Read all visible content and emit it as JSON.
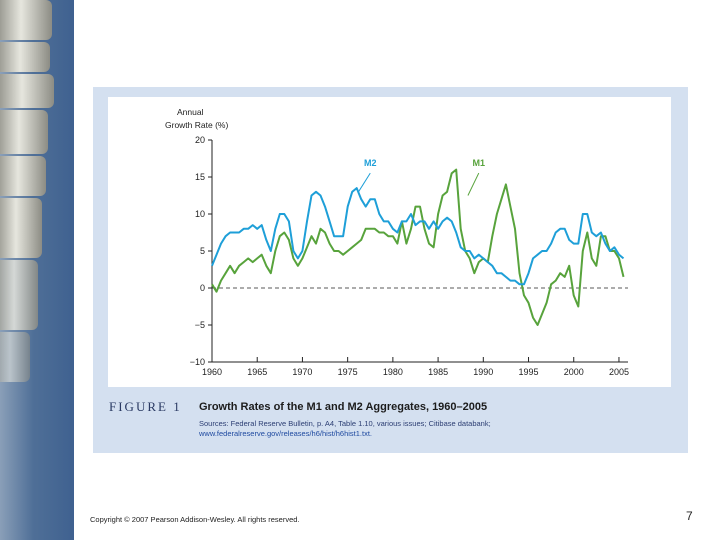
{
  "chart_data": {
    "type": "line",
    "title": "Growth Rates of the M1 and M2 Aggregates, 1960–2005",
    "figure_label": "FIGURE 1",
    "ylabel_line1": "Annual",
    "ylabel_line2": "Growth Rate (%)",
    "xlabel": "",
    "xlim": [
      1960,
      2006
    ],
    "ylim": [
      -10,
      20
    ],
    "xticks": [
      1960,
      1965,
      1970,
      1975,
      1980,
      1985,
      1990,
      1995,
      2000,
      2005
    ],
    "yticks": [
      20,
      15,
      10,
      5,
      0,
      -5,
      -10
    ],
    "ytick_labels": [
      "20",
      "15",
      "10",
      "5",
      "0",
      "−5",
      "−10"
    ],
    "zero_line": "dashed",
    "series": [
      {
        "name": "M1",
        "color": "#58a33c",
        "x": [
          1960,
          1960.5,
          1961,
          1961.5,
          1962,
          1962.5,
          1963,
          1963.5,
          1964,
          1964.5,
          1965,
          1965.5,
          1966,
          1966.5,
          1967,
          1967.5,
          1968,
          1968.5,
          1969,
          1969.5,
          1970,
          1970.5,
          1971,
          1971.5,
          1972,
          1972.5,
          1973,
          1973.5,
          1974,
          1974.5,
          1975,
          1975.5,
          1976,
          1976.5,
          1977,
          1977.5,
          1978,
          1978.5,
          1979,
          1979.5,
          1980,
          1980.5,
          1981,
          1981.5,
          1982,
          1982.5,
          1983,
          1983.5,
          1984,
          1984.5,
          1985,
          1985.5,
          1986,
          1986.5,
          1987,
          1987.5,
          1988,
          1988.5,
          1989,
          1989.5,
          1990,
          1990.5,
          1991,
          1991.5,
          1992,
          1992.5,
          1993,
          1993.5,
          1994,
          1994.5,
          1995,
          1995.5,
          1996,
          1996.5,
          1997,
          1997.5,
          1998,
          1998.5,
          1999,
          1999.5,
          2000,
          2000.5,
          2001,
          2001.5,
          2002,
          2002.5,
          2003,
          2003.5,
          2004,
          2004.5,
          2005,
          2005.5
        ],
        "values": [
          0.5,
          -0.5,
          1,
          2,
          3,
          2,
          3,
          3.5,
          4,
          3.5,
          4,
          4.5,
          3,
          2,
          5,
          7,
          7.5,
          6.5,
          4,
          3,
          4,
          5.5,
          7,
          6,
          8,
          7.5,
          6,
          5,
          5,
          4.5,
          5,
          5.5,
          6,
          6.5,
          8,
          8,
          8,
          7.5,
          7.5,
          7,
          7,
          6,
          9,
          6,
          8,
          11,
          11,
          8,
          6,
          5.5,
          10,
          12.5,
          13,
          15.5,
          16,
          8,
          5,
          4,
          2,
          3.5,
          4,
          3.5,
          7,
          10,
          12,
          14,
          11,
          8,
          2,
          -1,
          -2,
          -4,
          -5,
          -3.5,
          -2,
          0.5,
          1,
          2,
          1.5,
          3,
          -1,
          -2.5,
          5,
          7.5,
          4,
          3,
          7,
          7,
          5,
          5,
          4,
          1.5
        ]
      },
      {
        "name": "M2",
        "color": "#1e9fd8",
        "x": [
          1960,
          1960.5,
          1961,
          1961.5,
          1962,
          1962.5,
          1963,
          1963.5,
          1964,
          1964.5,
          1965,
          1965.5,
          1966,
          1966.5,
          1967,
          1967.5,
          1968,
          1968.5,
          1969,
          1969.5,
          1970,
          1970.5,
          1971,
          1971.5,
          1972,
          1972.5,
          1973,
          1973.5,
          1974,
          1974.5,
          1975,
          1975.5,
          1976,
          1976.5,
          1977,
          1977.5,
          1978,
          1978.5,
          1979,
          1979.5,
          1980,
          1980.5,
          1981,
          1981.5,
          1982,
          1982.5,
          1983,
          1983.5,
          1984,
          1984.5,
          1985,
          1985.5,
          1986,
          1986.5,
          1987,
          1987.5,
          1988,
          1988.5,
          1989,
          1989.5,
          1990,
          1990.5,
          1991,
          1991.5,
          1992,
          1992.5,
          1993,
          1993.5,
          1994,
          1994.5,
          1995,
          1995.5,
          1996,
          1996.5,
          1997,
          1997.5,
          1998,
          1998.5,
          1999,
          1999.5,
          2000,
          2000.5,
          2001,
          2001.5,
          2002,
          2002.5,
          2003,
          2003.5,
          2004,
          2004.5,
          2005,
          2005.5
        ],
        "values": [
          3,
          4.5,
          6,
          7,
          7.5,
          7.5,
          7.5,
          8,
          8,
          8.5,
          8,
          8.5,
          6.5,
          5,
          8,
          10,
          10,
          9,
          5,
          4,
          5,
          9,
          12.5,
          13,
          12.5,
          11,
          9,
          7,
          7,
          7,
          11,
          13,
          13.5,
          12,
          11,
          12,
          12,
          10,
          9,
          9,
          8,
          7.5,
          9,
          9,
          10,
          8.5,
          9,
          9,
          8,
          9,
          8,
          9,
          9.5,
          9,
          7.5,
          5.5,
          5,
          5,
          4,
          4.5,
          4,
          3.5,
          3,
          2,
          2,
          1.5,
          1,
          1,
          0.5,
          0.5,
          2,
          4,
          4.5,
          5,
          5,
          6,
          7.5,
          8,
          8,
          6.5,
          6,
          6,
          10,
          10,
          7.5,
          7,
          7.5,
          6,
          5,
          5.5,
          4.5,
          4
        ]
      }
    ],
    "annotations": [
      {
        "text": "M2",
        "x": 1977.5,
        "y": 16.5
      },
      {
        "text": "M1",
        "x": 1989.5,
        "y": 16.5
      }
    ],
    "sources_text": "Sources: Federal Reserve Bulletin, p. A4, Table 1.10, various issues; Citibase databank;",
    "sources_url": "www.federalreserve.gov/releases/h6/hist/h6hist1.txt."
  },
  "footer": {
    "copyright": "Copyright © 2007 Pearson Addison-Wesley. All rights reserved.",
    "page_number": "7"
  }
}
